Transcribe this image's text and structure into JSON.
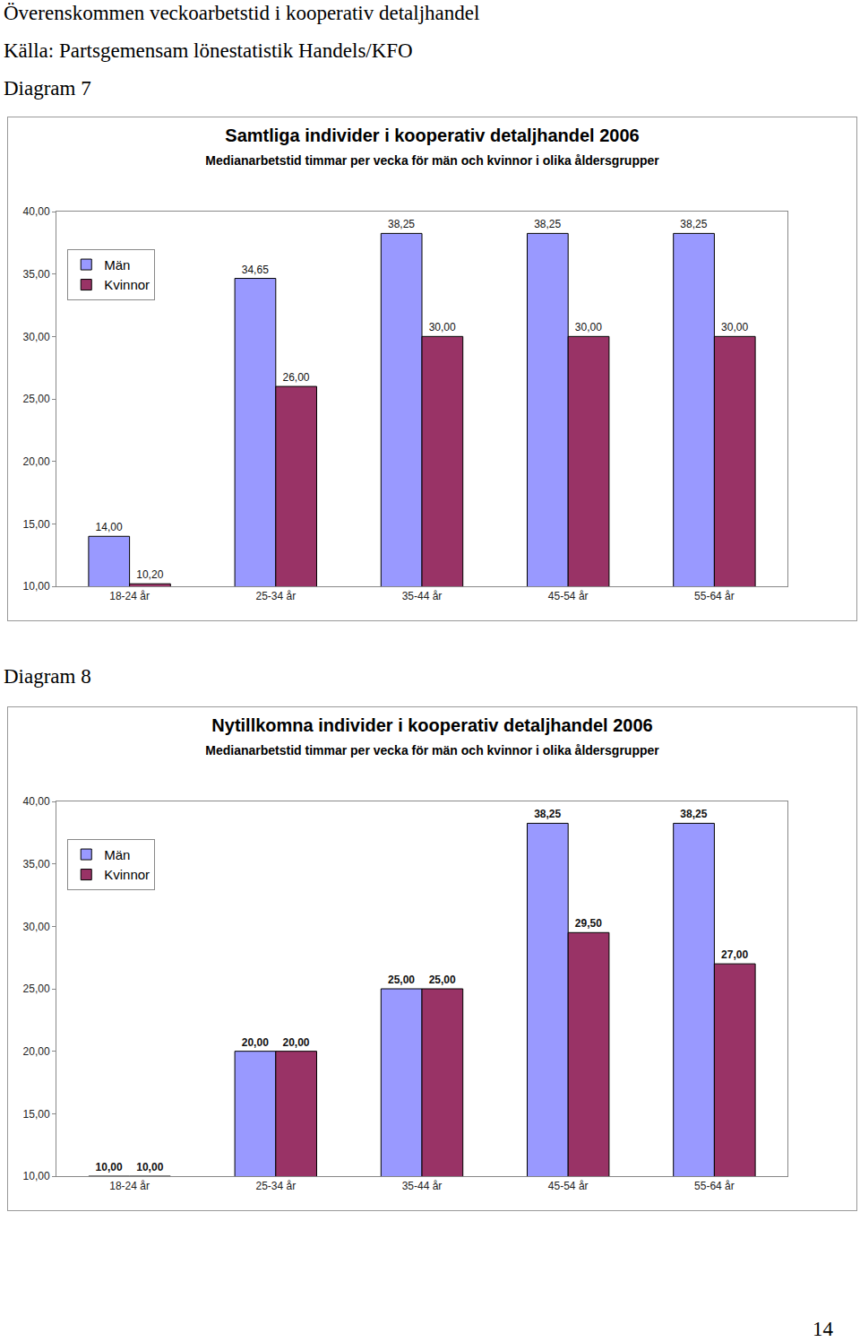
{
  "page": {
    "heading": "Överenskommen veckoarbetstid i kooperativ detaljhandel",
    "source": "Källa: Partsgemensam lönestatistik Handels/KFO",
    "captions": [
      "Diagram 7",
      "Diagram 8"
    ],
    "page_number": "14"
  },
  "chart_data": [
    {
      "type": "bar",
      "title": "Samtliga individer i kooperativ detaljhandel 2006",
      "subtitle": "Medianarbetstid timmar per vecka för män och kvinnor i olika åldersgrupper",
      "categories": [
        "18-24 år",
        "25-34 år",
        "35-44 år",
        "45-54 år",
        "55-64 år"
      ],
      "series": [
        {
          "name": "Män",
          "color": "#9999ff",
          "values": [
            14,
            34.65,
            38.25,
            38.25,
            38.25
          ],
          "value_labels": [
            "14,00",
            "34,65",
            "38,25",
            "38,25",
            "38,25"
          ]
        },
        {
          "name": "Kvinnor",
          "color": "#993366",
          "values": [
            10.2,
            26,
            30,
            30,
            30
          ],
          "value_labels": [
            "10,20",
            "26,00",
            "30,00",
            "30,00",
            "30,00"
          ]
        }
      ],
      "ylim": [
        10,
        40
      ],
      "yticks": [
        {
          "value": 10,
          "label": "10,00"
        },
        {
          "value": 15,
          "label": "15,00"
        },
        {
          "value": 20,
          "label": "20,00"
        },
        {
          "value": 25,
          "label": "25,00"
        },
        {
          "value": 30,
          "label": "30,00"
        },
        {
          "value": 35,
          "label": "35,00"
        },
        {
          "value": 40,
          "label": "40,00"
        }
      ],
      "grid": false,
      "legend": "upper left",
      "data_labels": true
    },
    {
      "type": "bar",
      "title": "Nytillkomna individer i kooperativ detaljhandel 2006",
      "subtitle": "Medianarbetstid timmar per vecka för män och kvinnor i olika åldersgrupper",
      "categories": [
        "18-24 år",
        "25-34 år",
        "35-44 år",
        "45-54 år",
        "55-64 år"
      ],
      "series": [
        {
          "name": "Män",
          "color": "#9999ff",
          "values": [
            10,
            20,
            25,
            38.25,
            38.25
          ],
          "value_labels": [
            "10,00",
            "20,00",
            "25,00",
            "38,25",
            "38,25"
          ]
        },
        {
          "name": "Kvinnor",
          "color": "#993366",
          "values": [
            10,
            20,
            25,
            29.5,
            27
          ],
          "value_labels": [
            "10,00",
            "20,00",
            "25,00",
            "29,50",
            "27,00"
          ]
        }
      ],
      "ylim": [
        10,
        40
      ],
      "yticks": [
        {
          "value": 10,
          "label": "10,00"
        },
        {
          "value": 15,
          "label": "15,00"
        },
        {
          "value": 20,
          "label": "20,00"
        },
        {
          "value": 25,
          "label": "25,00"
        },
        {
          "value": 30,
          "label": "30,00"
        },
        {
          "value": 35,
          "label": "35,00"
        },
        {
          "value": 40,
          "label": "40,00"
        }
      ],
      "grid": false,
      "legend": "upper left",
      "data_labels": true
    }
  ]
}
